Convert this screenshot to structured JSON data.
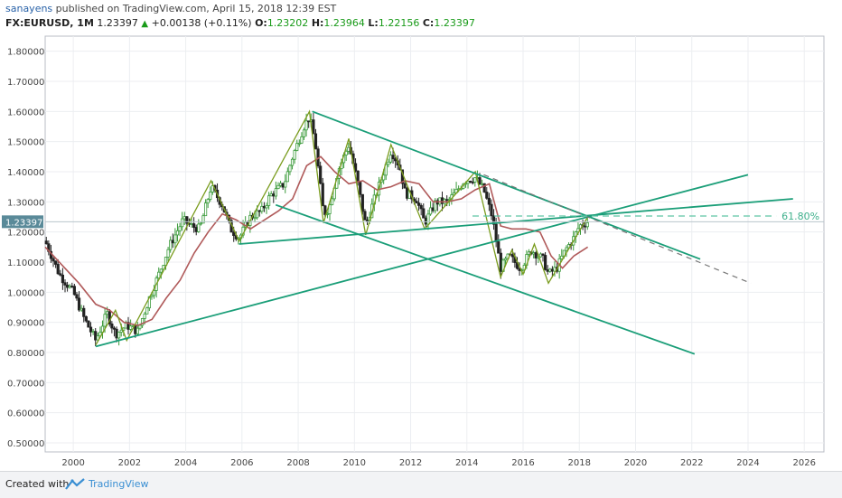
{
  "header": {
    "publisher": "sanayens",
    "published_text": "published on TradingView.com, April 15, 2018 12:39 EST",
    "symbol": "FX:EURUSD, 1M",
    "last": "1.23397",
    "change": "+0.00138 (+0.11%)",
    "open_label": "O:",
    "open": "1.23202",
    "high_label": "H:",
    "high": "1.23964",
    "low_label": "L:",
    "low": "1.22156",
    "close_label": "C:",
    "close": "1.23397"
  },
  "footer": {
    "created_with": "Created with",
    "brand": "TradingView"
  },
  "chart_data": {
    "type": "candlestick",
    "symbol": "FX:EURUSD",
    "timeframe": "1M",
    "price_label": "1.23397",
    "fib_label": "61.80%",
    "xlim": [
      1999.0,
      2026.7
    ],
    "ylim": [
      0.47,
      1.85
    ],
    "y_ticks": [
      1.8,
      1.7,
      1.6,
      1.5,
      1.4,
      1.3,
      1.2,
      1.1,
      1.0,
      0.9,
      0.8,
      0.7,
      0.6,
      0.5
    ],
    "y_tick_labels": [
      "1.80000",
      "1.70000",
      "1.60000",
      "1.50000",
      "1.40000",
      "1.30000",
      "1.20000",
      "1.10000",
      "1.00000",
      "0.90000",
      "0.80000",
      "0.70000",
      "0.60000",
      "0.50000"
    ],
    "x_ticks": [
      2000,
      2002,
      2004,
      2006,
      2008,
      2010,
      2012,
      2014,
      2016,
      2018,
      2020,
      2022,
      2024,
      2026
    ],
    "x_tick_labels": [
      "2000",
      "2002",
      "2004",
      "2006",
      "2008",
      "2010",
      "2012",
      "2014",
      "2016",
      "2018",
      "2020",
      "2022",
      "2024",
      "2026"
    ],
    "price_path": [
      [
        1999.0,
        1.17
      ],
      [
        1999.5,
        1.06
      ],
      [
        2000.0,
        1.0
      ],
      [
        2000.4,
        0.91
      ],
      [
        2000.8,
        0.84
      ],
      [
        2001.2,
        0.93
      ],
      [
        2001.5,
        0.86
      ],
      [
        2001.9,
        0.89
      ],
      [
        2002.3,
        0.87
      ],
      [
        2002.7,
        0.98
      ],
      [
        2003.0,
        1.05
      ],
      [
        2003.4,
        1.15
      ],
      [
        2003.9,
        1.24
      ],
      [
        2004.2,
        1.22
      ],
      [
        2004.5,
        1.21
      ],
      [
        2004.9,
        1.35
      ],
      [
        2005.3,
        1.29
      ],
      [
        2005.6,
        1.21
      ],
      [
        2005.9,
        1.18
      ],
      [
        2006.3,
        1.25
      ],
      [
        2006.7,
        1.27
      ],
      [
        2007.0,
        1.32
      ],
      [
        2007.5,
        1.36
      ],
      [
        2007.8,
        1.45
      ],
      [
        2008.2,
        1.55
      ],
      [
        2008.4,
        1.58
      ],
      [
        2008.6,
        1.5
      ],
      [
        2008.9,
        1.26
      ],
      [
        2009.1,
        1.28
      ],
      [
        2009.4,
        1.4
      ],
      [
        2009.8,
        1.49
      ],
      [
        2010.1,
        1.37
      ],
      [
        2010.4,
        1.22
      ],
      [
        2010.6,
        1.28
      ],
      [
        2010.9,
        1.36
      ],
      [
        2011.3,
        1.47
      ],
      [
        2011.6,
        1.42
      ],
      [
        2011.8,
        1.33
      ],
      [
        2012.2,
        1.31
      ],
      [
        2012.5,
        1.23
      ],
      [
        2012.9,
        1.3
      ],
      [
        2013.3,
        1.3
      ],
      [
        2013.6,
        1.33
      ],
      [
        2013.9,
        1.37
      ],
      [
        2014.3,
        1.38
      ],
      [
        2014.6,
        1.34
      ],
      [
        2014.9,
        1.25
      ],
      [
        2015.2,
        1.08
      ],
      [
        2015.5,
        1.12
      ],
      [
        2015.9,
        1.08
      ],
      [
        2016.3,
        1.14
      ],
      [
        2016.7,
        1.11
      ],
      [
        2016.9,
        1.06
      ],
      [
        2017.2,
        1.08
      ],
      [
        2017.5,
        1.14
      ],
      [
        2017.8,
        1.18
      ],
      [
        2018.0,
        1.22
      ],
      [
        2018.3,
        1.234
      ]
    ],
    "moving_average": [
      [
        1999.0,
        1.15
      ],
      [
        1999.6,
        1.09
      ],
      [
        2000.2,
        1.03
      ],
      [
        2000.8,
        0.96
      ],
      [
        2001.3,
        0.94
      ],
      [
        2001.8,
        0.9
      ],
      [
        2002.3,
        0.89
      ],
      [
        2002.8,
        0.91
      ],
      [
        2003.3,
        0.98
      ],
      [
        2003.8,
        1.04
      ],
      [
        2004.3,
        1.13
      ],
      [
        2004.8,
        1.2
      ],
      [
        2005.3,
        1.26
      ],
      [
        2005.8,
        1.24
      ],
      [
        2006.3,
        1.21
      ],
      [
        2006.8,
        1.24
      ],
      [
        2007.3,
        1.27
      ],
      [
        2007.8,
        1.31
      ],
      [
        2008.3,
        1.42
      ],
      [
        2008.8,
        1.45
      ],
      [
        2009.3,
        1.4
      ],
      [
        2009.8,
        1.36
      ],
      [
        2010.3,
        1.37
      ],
      [
        2010.8,
        1.34
      ],
      [
        2011.3,
        1.35
      ],
      [
        2011.8,
        1.37
      ],
      [
        2012.3,
        1.36
      ],
      [
        2012.8,
        1.3
      ],
      [
        2013.3,
        1.3
      ],
      [
        2013.8,
        1.31
      ],
      [
        2014.3,
        1.34
      ],
      [
        2014.8,
        1.36
      ],
      [
        2015.2,
        1.22
      ],
      [
        2015.6,
        1.21
      ],
      [
        2016.1,
        1.21
      ],
      [
        2016.6,
        1.2
      ],
      [
        2017.0,
        1.12
      ],
      [
        2017.4,
        1.08
      ],
      [
        2017.8,
        1.12
      ],
      [
        2018.3,
        1.15
      ]
    ],
    "zigzag": [
      [
        2000.8,
        0.825
      ],
      [
        2001.5,
        0.94
      ],
      [
        2001.9,
        0.84
      ],
      [
        2004.9,
        1.37
      ],
      [
        2005.9,
        1.17
      ],
      [
        2008.4,
        1.6
      ],
      [
        2008.9,
        1.23
      ],
      [
        2009.8,
        1.51
      ],
      [
        2010.4,
        1.19
      ],
      [
        2011.3,
        1.49
      ],
      [
        2012.5,
        1.21
      ],
      [
        2014.3,
        1.4
      ],
      [
        2015.2,
        1.05
      ],
      [
        2015.6,
        1.14
      ],
      [
        2016.0,
        1.06
      ],
      [
        2016.4,
        1.16
      ],
      [
        2016.9,
        1.03
      ],
      [
        2018.3,
        1.25
      ]
    ],
    "trendlines": [
      {
        "from": [
          2008.5,
          1.6
        ],
        "to": [
          2022.3,
          1.11
        ]
      },
      {
        "from": [
          2007.2,
          1.29
        ],
        "to": [
          2022.1,
          0.795
        ]
      },
      {
        "from": [
          2000.8,
          0.82
        ],
        "to": [
          2024.0,
          1.39
        ]
      },
      {
        "from": [
          2005.9,
          1.16
        ],
        "to": [
          2025.6,
          1.31
        ]
      },
      {
        "from": [
          2014.6,
          1.39
        ],
        "to": [
          2024.1,
          1.03
        ],
        "dashed": true
      }
    ],
    "fib_line": {
      "y": 1.253,
      "x_from": 2014.2,
      "x_to": 2025.0
    },
    "price_line": {
      "y": 1.234
    }
  }
}
